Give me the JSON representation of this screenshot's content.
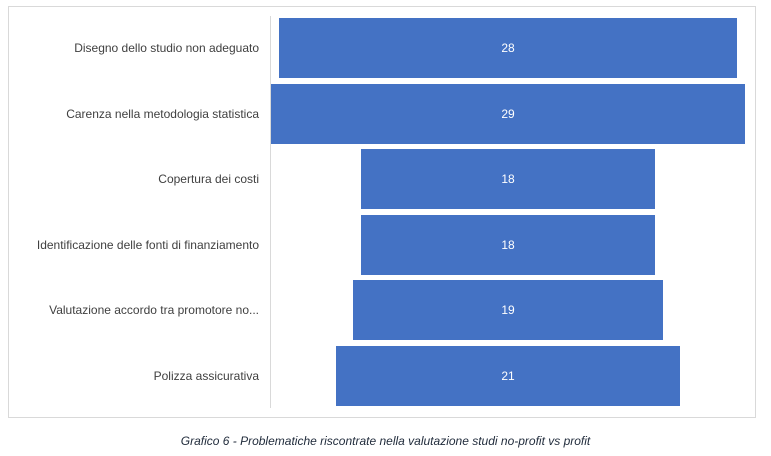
{
  "chart_data": {
    "type": "bar",
    "subtype": "funnel",
    "categories": [
      "Disegno dello studio non adeguato",
      "Carenza nella metodologia statistica",
      "Copertura dei costi",
      "Identificazione delle fonti di finanziamento",
      "Valutazione accordo tra promotore no...",
      "Polizza assicurativa"
    ],
    "values": [
      28,
      29,
      18,
      18,
      19,
      21
    ],
    "color": "#4472c4",
    "data_labels": true,
    "legend": "none",
    "caption": "Grafico 6 - Problematiche riscontrate nella valutazione studi no-profit vs profit"
  }
}
